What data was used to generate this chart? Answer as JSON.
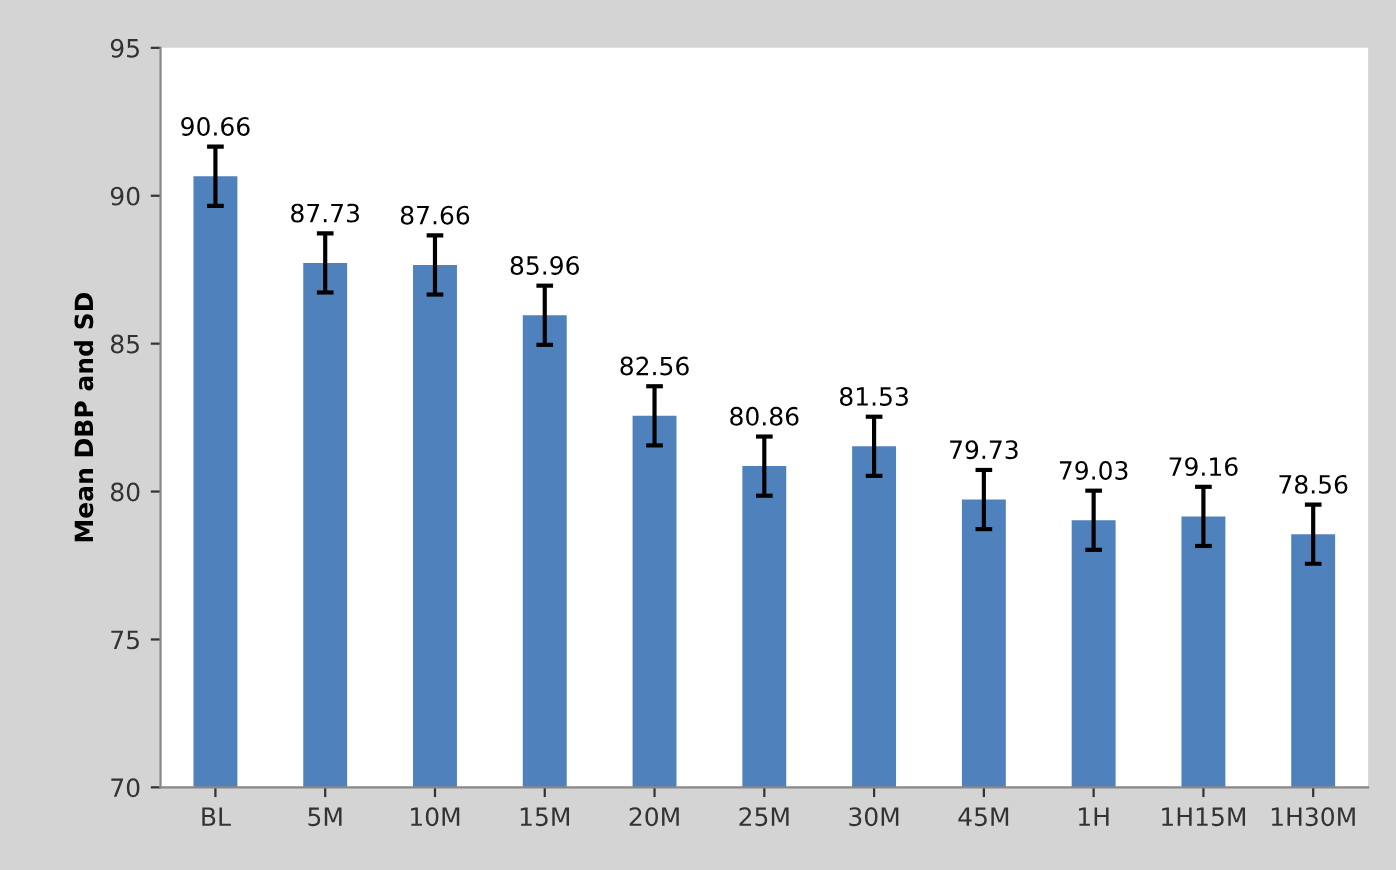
{
  "chart_data": {
    "type": "bar",
    "ylabel": "Mean DBP and SD",
    "categories": [
      "BL",
      "5M",
      "10M",
      "15M",
      "20M",
      "25M",
      "30M",
      "45M",
      "1H",
      "1H15M",
      "1H30M"
    ],
    "values": [
      90.66,
      87.73,
      87.66,
      85.96,
      82.56,
      80.86,
      81.53,
      79.73,
      79.03,
      79.16,
      78.56
    ],
    "errors": [
      1,
      1,
      1,
      1,
      1,
      1,
      1,
      1,
      1,
      1,
      1
    ],
    "color": "#4f81bd",
    "data_labels": true,
    "ylim": [
      70,
      95
    ],
    "yticks": [
      70,
      75,
      80,
      85,
      90,
      95
    ],
    "grid": false,
    "legend": false
  }
}
